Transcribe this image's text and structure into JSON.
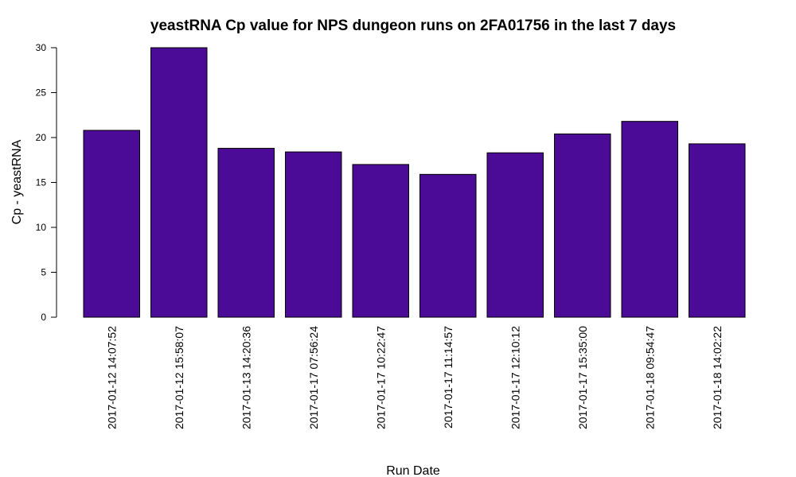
{
  "chart_data": {
    "type": "bar",
    "title": "yeastRNA Cp value for NPS dungeon runs on 2FA01756 in the last 7 days",
    "xlabel": "Run Date",
    "ylabel": "Cp - yeastRNA",
    "ylim": [
      0,
      30
    ],
    "yticks": [
      0,
      5,
      10,
      15,
      20,
      25,
      30
    ],
    "grid": false,
    "bar_color": "#4B0B96",
    "categories": [
      "2017-01-12 14:07:52",
      "2017-01-12 15:58:07",
      "2017-01-13 14:20:36",
      "2017-01-17 07:56:24",
      "2017-01-17 10:22:47",
      "2017-01-17 11:14:57",
      "2017-01-17 12:10:12",
      "2017-01-17 15:35:00",
      "2017-01-18 09:54:47",
      "2017-01-18 14:02:22"
    ],
    "values": [
      20.8,
      30.0,
      18.8,
      18.4,
      17.0,
      15.9,
      18.3,
      20.4,
      21.8,
      19.3
    ]
  }
}
